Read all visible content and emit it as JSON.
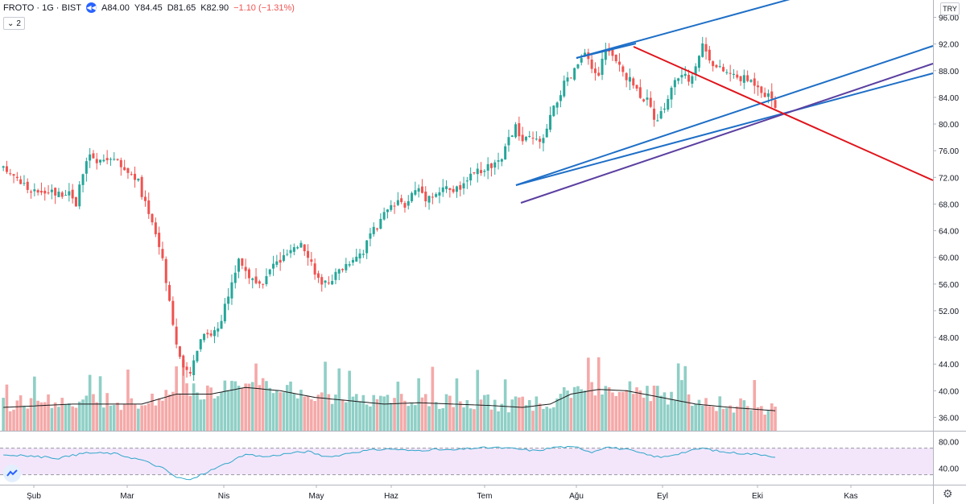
{
  "header": {
    "symbol": "FROTO · 1G · BIST",
    "open": "A84.00",
    "high": "Y84.45",
    "low": "D81.65",
    "close": "K82.90",
    "change": "−1.10 (−1.31%)",
    "indicator_count": "2"
  },
  "currency": "TRY",
  "colors": {
    "up": "#26a69a",
    "down": "#ef5350",
    "volume_up": "#8fcfc6",
    "volume_down": "#f4a9a8",
    "channel": "#1e6fc7",
    "trend_down": "#e0141b",
    "trend_purple": "#5b3fa0",
    "rsi_line": "#2ea6c9",
    "rsi_band": "#f3e6fb"
  },
  "chart_data": {
    "type": "candlestick",
    "price_axis": {
      "ticks": [
        "96.00",
        "92.00",
        "88.00",
        "84.00",
        "80.00",
        "76.00",
        "72.00",
        "68.00",
        "64.00",
        "60.00",
        "56.00",
        "52.00",
        "48.00",
        "44.00",
        "40.00",
        "36.00"
      ],
      "range": [
        34.0,
        98.6
      ]
    },
    "rsi_axis": {
      "ticks": [
        "80.00",
        "40.00"
      ],
      "range": [
        15,
        95
      ],
      "band": [
        30,
        70
      ]
    },
    "time_axis": [
      "Şub",
      "Mar",
      "Nis",
      "May",
      "Haz",
      "Tem",
      "Ağu",
      "Eyl",
      "Eki",
      "Kas"
    ],
    "price_path": [
      [
        0,
        73.2
      ],
      [
        3,
        72.5
      ],
      [
        6,
        71.0
      ],
      [
        8,
        69.5
      ],
      [
        10,
        70.0
      ],
      [
        13,
        70.2
      ],
      [
        16,
        69.5
      ],
      [
        19,
        70.0
      ],
      [
        21,
        68.2
      ],
      [
        23,
        72.5
      ],
      [
        25,
        75.5
      ],
      [
        27,
        74.0
      ],
      [
        29,
        74.5
      ],
      [
        31,
        75.2
      ],
      [
        33,
        74.2
      ],
      [
        35,
        73.2
      ],
      [
        37,
        72.5
      ],
      [
        39,
        71.5
      ],
      [
        40,
        69.0
      ],
      [
        42,
        67.0
      ],
      [
        44,
        63.5
      ],
      [
        46,
        60.0
      ],
      [
        48,
        53.5
      ],
      [
        50,
        47.0
      ],
      [
        52,
        43.0
      ],
      [
        54,
        42.5
      ],
      [
        56,
        46.5
      ],
      [
        58,
        49.0
      ],
      [
        60,
        48.5
      ],
      [
        62,
        49.5
      ],
      [
        64,
        52.5
      ],
      [
        66,
        56.0
      ],
      [
        68,
        60.0
      ],
      [
        70,
        58.0
      ],
      [
        72,
        56.5
      ],
      [
        74,
        55.5
      ],
      [
        76,
        57.0
      ],
      [
        78,
        59.0
      ],
      [
        80,
        59.5
      ],
      [
        82,
        60.5
      ],
      [
        84,
        61.0
      ],
      [
        86,
        62.5
      ],
      [
        88,
        60.5
      ],
      [
        90,
        58.0
      ],
      [
        92,
        55.5
      ],
      [
        94,
        56.5
      ],
      [
        96,
        57.5
      ],
      [
        98,
        58.5
      ],
      [
        100,
        59.5
      ],
      [
        102,
        60.5
      ],
      [
        104,
        61.0
      ],
      [
        106,
        63.5
      ],
      [
        108,
        64.5
      ],
      [
        110,
        66.5
      ],
      [
        112,
        67.5
      ],
      [
        114,
        68.0
      ],
      [
        116,
        68.0
      ],
      [
        118,
        69.5
      ],
      [
        120,
        70.5
      ],
      [
        122,
        69.0
      ],
      [
        124,
        69.5
      ],
      [
        126,
        69.8
      ],
      [
        128,
        70.5
      ],
      [
        130,
        70.0
      ],
      [
        132,
        70.5
      ],
      [
        134,
        71.0
      ],
      [
        136,
        73.0
      ],
      [
        138,
        72.5
      ],
      [
        140,
        73.5
      ],
      [
        142,
        74.0
      ],
      [
        144,
        74.5
      ],
      [
        146,
        78.0
      ],
      [
        148,
        79.5
      ],
      [
        150,
        77.5
      ],
      [
        152,
        77.8
      ],
      [
        154,
        77.5
      ],
      [
        156,
        77.5
      ],
      [
        158,
        81.0
      ],
      [
        160,
        83.5
      ],
      [
        162,
        86.0
      ],
      [
        164,
        87.0
      ],
      [
        166,
        89.0
      ],
      [
        168,
        90.5
      ],
      [
        170,
        88.0
      ],
      [
        172,
        87.5
      ],
      [
        174,
        91.5
      ],
      [
        176,
        90.0
      ],
      [
        178,
        88.5
      ],
      [
        180,
        87.0
      ],
      [
        182,
        86.0
      ],
      [
        184,
        84.5
      ],
      [
        186,
        83.5
      ],
      [
        188,
        80.5
      ],
      [
        190,
        81.5
      ],
      [
        192,
        84.0
      ],
      [
        194,
        86.5
      ],
      [
        196,
        87.5
      ],
      [
        198,
        86.5
      ],
      [
        200,
        89.0
      ],
      [
        202,
        92.0
      ],
      [
        204,
        90.0
      ],
      [
        206,
        88.5
      ],
      [
        208,
        88.0
      ],
      [
        210,
        87.5
      ],
      [
        212,
        87.0
      ],
      [
        214,
        86.8
      ],
      [
        216,
        86.5
      ],
      [
        218,
        86.0
      ],
      [
        220,
        84.5
      ],
      [
        222,
        84.0
      ],
      [
        223,
        82.9
      ]
    ],
    "volume_path": [
      [
        0,
        37.5
      ],
      [
        20,
        38.0
      ],
      [
        40,
        38.0
      ],
      [
        50,
        39.5
      ],
      [
        60,
        39.5
      ],
      [
        70,
        40.5
      ],
      [
        80,
        40.0
      ],
      [
        90,
        39.0
      ],
      [
        100,
        38.5
      ],
      [
        110,
        38.0
      ],
      [
        120,
        38.2
      ],
      [
        130,
        38.0
      ],
      [
        140,
        37.8
      ],
      [
        150,
        37.5
      ],
      [
        158,
        38.0
      ],
      [
        164,
        39.5
      ],
      [
        172,
        40.2
      ],
      [
        180,
        40.0
      ],
      [
        190,
        39.0
      ],
      [
        200,
        38.0
      ],
      [
        210,
        37.5
      ],
      [
        223,
        37.0
      ]
    ],
    "rsi_path": [
      [
        0,
        60
      ],
      [
        8,
        58
      ],
      [
        16,
        55
      ],
      [
        24,
        63
      ],
      [
        32,
        62
      ],
      [
        40,
        52
      ],
      [
        46,
        40
      ],
      [
        50,
        26
      ],
      [
        54,
        22
      ],
      [
        58,
        32
      ],
      [
        64,
        46
      ],
      [
        70,
        60
      ],
      [
        76,
        57
      ],
      [
        82,
        62
      ],
      [
        88,
        65
      ],
      [
        94,
        56
      ],
      [
        100,
        63
      ],
      [
        106,
        67
      ],
      [
        112,
        69
      ],
      [
        118,
        66
      ],
      [
        124,
        68
      ],
      [
        130,
        67
      ],
      [
        136,
        70
      ],
      [
        142,
        71
      ],
      [
        148,
        69
      ],
      [
        154,
        66
      ],
      [
        160,
        72
      ],
      [
        166,
        71
      ],
      [
        170,
        64
      ],
      [
        174,
        72
      ],
      [
        180,
        68
      ],
      [
        186,
        60
      ],
      [
        190,
        56
      ],
      [
        196,
        63
      ],
      [
        202,
        70
      ],
      [
        208,
        64
      ],
      [
        214,
        62
      ],
      [
        220,
        60
      ],
      [
        223,
        57
      ]
    ]
  }
}
